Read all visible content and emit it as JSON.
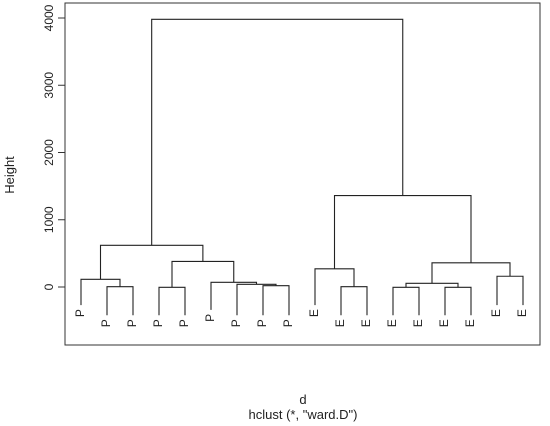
{
  "chart_data": {
    "type": "dendrogram",
    "ylabel": "Height",
    "xlabel": "d",
    "sub": "hclust (*, \"ward.D\")",
    "ylim": [
      -620,
      4000
    ],
    "y_ticks": [
      0,
      1000,
      2000,
      3000,
      4000
    ],
    "leaves": [
      "P",
      "P",
      "P",
      "P",
      "P",
      "P",
      "P",
      "P",
      "P",
      "E",
      "E",
      "E",
      "E",
      "E",
      "E",
      "E",
      "E",
      "E"
    ],
    "leaf_heights": [
      -270,
      -420,
      -420,
      -420,
      -420,
      -340,
      -420,
      -420,
      -420,
      -270,
      -420,
      -420,
      -420,
      -420,
      -420,
      -420,
      -270,
      -270
    ],
    "merges": [
      {
        "left": "L1",
        "right": "L2",
        "height": 5
      },
      {
        "left": "L0",
        "right": "N0",
        "height": 115
      },
      {
        "left": "L3",
        "right": "L4",
        "height": -5
      },
      {
        "left": "L7",
        "right": "L8",
        "height": 20
      },
      {
        "left": "L6",
        "right": "N3",
        "height": 40
      },
      {
        "left": "L5",
        "right": "N4",
        "height": 70
      },
      {
        "left": "N2",
        "right": "N5",
        "height": 380
      },
      {
        "left": "N1",
        "right": "N6",
        "height": 620
      },
      {
        "left": "L10",
        "right": "L11",
        "height": 5
      },
      {
        "left": "L9",
        "right": "N8",
        "height": 270
      },
      {
        "left": "L12",
        "right": "L13",
        "height": -5
      },
      {
        "left": "L14",
        "right": "L15",
        "height": -5
      },
      {
        "left": "N10",
        "right": "N11",
        "height": 55
      },
      {
        "left": "L16",
        "right": "L17",
        "height": 160
      },
      {
        "left": "N12",
        "right": "N13",
        "height": 360
      },
      {
        "left": "N9",
        "right": "N14",
        "height": 1360
      },
      {
        "left": "N7",
        "right": "N15",
        "height": 3980
      }
    ]
  }
}
